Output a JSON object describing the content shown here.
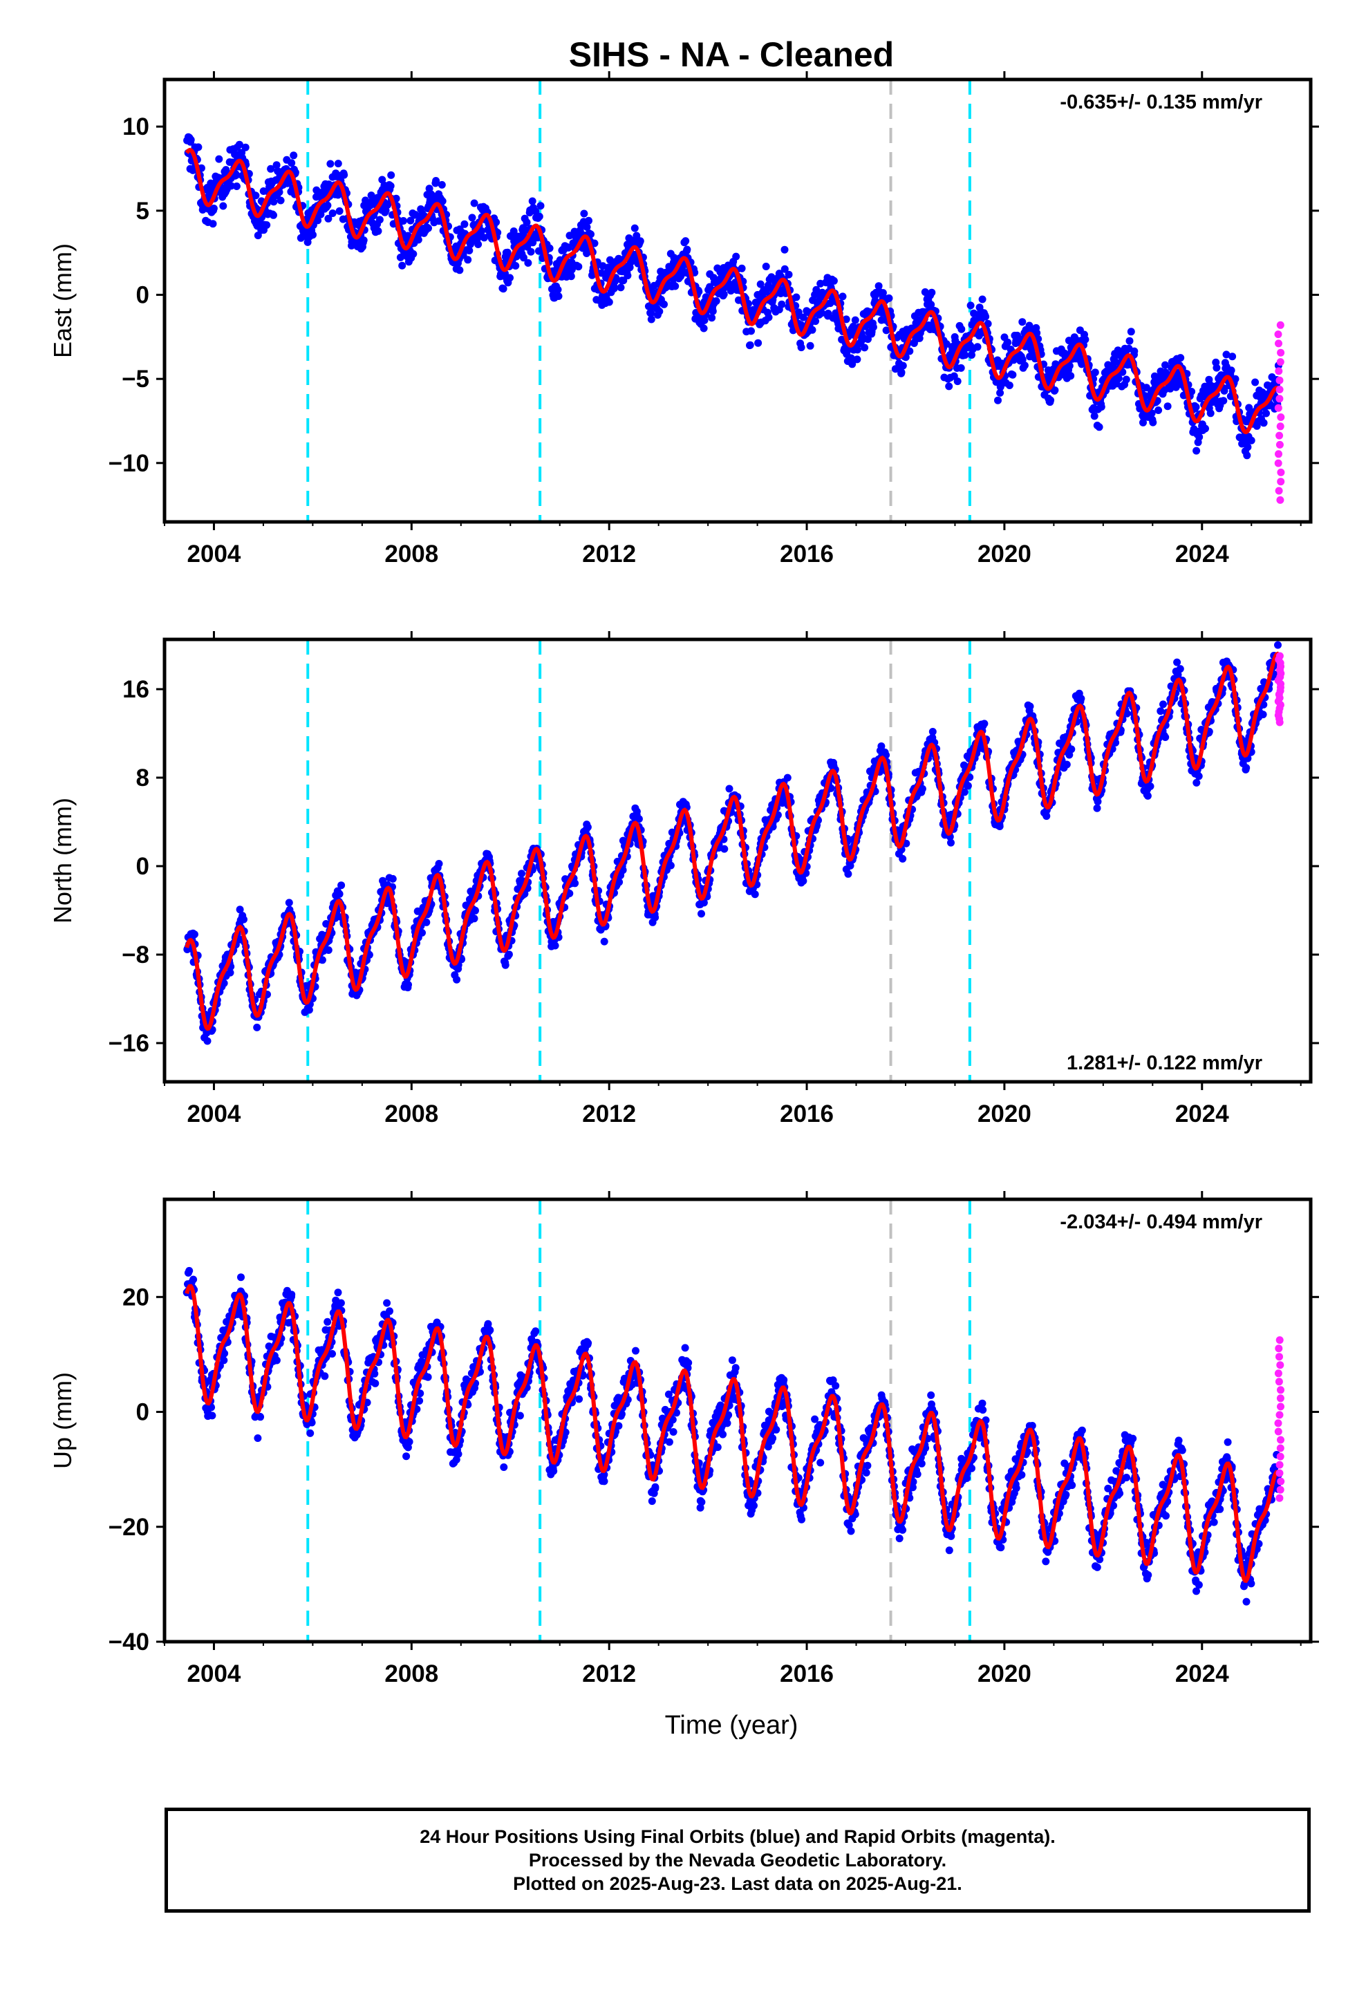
{
  "title": "SIHS  - NA - Cleaned",
  "x_axis": {
    "label": "Time (year)",
    "ticks": [
      2004,
      2008,
      2012,
      2016,
      2020,
      2024
    ],
    "range": [
      2003.0,
      2026.2
    ]
  },
  "colors": {
    "final_orbits": "#0000ff",
    "rapid_orbits": "#ff22ff",
    "model": "#ff0000",
    "offset_equipment": "#00e5ff",
    "offset_other": "#c0c0c0"
  },
  "offset_lines": [
    {
      "year": 2005.9,
      "color": "#00e5ff"
    },
    {
      "year": 2010.6,
      "color": "#00e5ff"
    },
    {
      "year": 2017.7,
      "color": "#c0c0c0"
    },
    {
      "year": 2019.3,
      "color": "#00e5ff"
    }
  ],
  "chart_data": [
    {
      "type": "scatter",
      "ylabel": "East (mm)",
      "ylim": [
        -13.5,
        12.8
      ],
      "yticks": [
        10,
        5,
        0,
        -5,
        -10
      ],
      "rate": "-0.635+/- 0.135 mm/yr",
      "rate_position": "top-right",
      "data_start": 2003.45,
      "data_end": 2025.55,
      "trend": {
        "start": 7.2,
        "end": -7.0
      },
      "annual_amplitude": 1.3,
      "scatter_spread": 1.6,
      "rapid_range": [
        -12.2,
        -1.8
      ],
      "grid": false
    },
    {
      "type": "scatter",
      "ylabel": "North (mm)",
      "ylim": [
        -19.5,
        20.5
      ],
      "yticks": [
        16,
        8,
        0,
        -8,
        -16
      ],
      "rate": "1.281+/- 0.122 mm/yr",
      "rate_position": "bottom-right",
      "data_start": 2003.45,
      "data_end": 2025.55,
      "trend": {
        "start": -10.8,
        "end": 15.2
      },
      "annual_amplitude": 3.6,
      "scatter_spread": 1.7,
      "rapid_range": [
        13.0,
        19.0
      ],
      "grid": false
    },
    {
      "type": "scatter",
      "ylabel": "Up (mm)",
      "ylim": [
        -40,
        37
      ],
      "yticks": [
        20,
        0,
        -20,
        -40
      ],
      "rate": "-2.034+/- 0.494 mm/yr",
      "rate_position": "top-right",
      "data_start": 2003.45,
      "data_end": 2025.55,
      "trend": {
        "start": 12.5,
        "end": -20.0
      },
      "annual_amplitude": 8.5,
      "scatter_spread": 4.2,
      "rapid_range": [
        -15.0,
        12.5
      ],
      "grid": false
    }
  ],
  "footer": {
    "line1": "24 Hour Positions Using Final Orbits (blue) and Rapid Orbits (magenta).",
    "line2": "Processed by the Nevada Geodetic Laboratory.",
    "line3": "Plotted on 2025-Aug-23. Last data on 2025-Aug-21."
  }
}
